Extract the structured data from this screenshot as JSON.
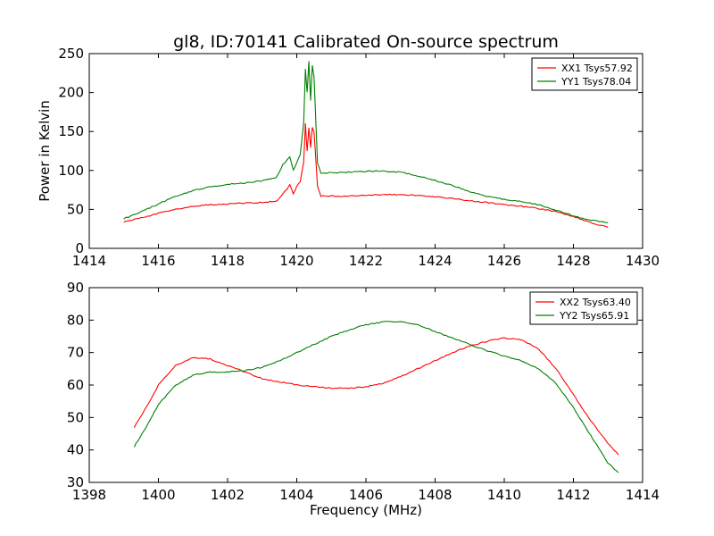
{
  "title": "gl8, ID:70141 Calibrated On-source spectrum",
  "ylabel_top": "Power in Kelvin",
  "xlabel_bottom": "Frequency (MHz)",
  "colors": {
    "XX": "#ff0000",
    "YY": "#008000",
    "axes": "#000000",
    "background": "#ffffff"
  },
  "chart_data": [
    {
      "type": "line",
      "xlim": [
        1414,
        1430
      ],
      "ylim": [
        0,
        250
      ],
      "xticks": [
        1414,
        1416,
        1418,
        1420,
        1422,
        1424,
        1426,
        1428,
        1430
      ],
      "yticks": [
        0,
        50,
        100,
        150,
        200,
        250
      ],
      "ylabel": "Power in Kelvin",
      "legend_position": "top-right",
      "series": [
        {
          "name": "XX1 Tsys57.92",
          "color": "#ff0000",
          "x": [
            1415.0,
            1415.5,
            1416.0,
            1416.5,
            1417.0,
            1417.5,
            1418.0,
            1418.5,
            1419.0,
            1419.4,
            1419.5,
            1419.6,
            1419.7,
            1419.8,
            1419.9,
            1420.0,
            1420.1,
            1420.2,
            1420.25,
            1420.3,
            1420.35,
            1420.4,
            1420.45,
            1420.5,
            1420.6,
            1420.7,
            1421.0,
            1421.5,
            1422.0,
            1422.5,
            1423.0,
            1423.5,
            1424.0,
            1424.5,
            1425.0,
            1425.5,
            1426.0,
            1426.5,
            1427.0,
            1427.5,
            1428.0,
            1428.5,
            1429.0
          ],
          "y": [
            34,
            39,
            45,
            50,
            54,
            56,
            57,
            58,
            59,
            61,
            64,
            70,
            75,
            82,
            70,
            80,
            85,
            110,
            160,
            125,
            155,
            130,
            155,
            150,
            80,
            67,
            67,
            67,
            68,
            69,
            69,
            68,
            66,
            64,
            61,
            59,
            56,
            54,
            51,
            47,
            41,
            33,
            27
          ]
        },
        {
          "name": "YY1 Tsys78.04",
          "color": "#008000",
          "x": [
            1415.0,
            1415.5,
            1416.0,
            1416.5,
            1417.0,
            1417.5,
            1418.0,
            1418.5,
            1419.0,
            1419.4,
            1419.5,
            1419.6,
            1419.7,
            1419.8,
            1419.9,
            1420.0,
            1420.1,
            1420.2,
            1420.25,
            1420.3,
            1420.35,
            1420.4,
            1420.45,
            1420.5,
            1420.6,
            1420.7,
            1421.0,
            1421.5,
            1422.0,
            1422.5,
            1423.0,
            1423.5,
            1424.0,
            1424.5,
            1425.0,
            1425.5,
            1426.0,
            1426.5,
            1427.0,
            1427.5,
            1428.0,
            1428.5,
            1429.0
          ],
          "y": [
            38,
            47,
            57,
            67,
            74,
            79,
            82,
            84,
            87,
            91,
            98,
            108,
            112,
            118,
            100,
            110,
            120,
            160,
            230,
            200,
            240,
            190,
            235,
            220,
            110,
            97,
            97,
            98,
            99,
            99,
            98,
            93,
            87,
            81,
            73,
            67,
            63,
            60,
            56,
            49,
            42,
            36,
            33
          ]
        }
      ]
    },
    {
      "type": "line",
      "xlim": [
        1398,
        1414
      ],
      "ylim": [
        30,
        90
      ],
      "xticks": [
        1398,
        1400,
        1402,
        1404,
        1406,
        1408,
        1410,
        1412,
        1414
      ],
      "yticks": [
        30,
        40,
        50,
        60,
        70,
        80,
        90
      ],
      "xlabel": "Frequency (MHz)",
      "legend_position": "top-right",
      "series": [
        {
          "name": "XX2 Tsys63.40",
          "color": "#ff0000",
          "x": [
            1399.3,
            1399.7,
            1400.0,
            1400.5,
            1401.0,
            1401.5,
            1402.0,
            1402.5,
            1403.0,
            1403.5,
            1404.0,
            1404.5,
            1405.0,
            1405.5,
            1406.0,
            1406.5,
            1407.0,
            1407.5,
            1408.0,
            1408.5,
            1409.0,
            1409.5,
            1410.0,
            1410.5,
            1411.0,
            1411.5,
            1412.0,
            1412.5,
            1413.0,
            1413.3
          ],
          "y": [
            47,
            54,
            60,
            66,
            68.5,
            68,
            66,
            64,
            62,
            61,
            60,
            59.5,
            59,
            59,
            59.5,
            60.5,
            62.5,
            65,
            67.5,
            70,
            72,
            73.5,
            74.5,
            74,
            71,
            65,
            57,
            49,
            42,
            38.5
          ]
        },
        {
          "name": "YY2 Tsys65.91",
          "color": "#008000",
          "x": [
            1399.3,
            1399.7,
            1400.0,
            1400.5,
            1401.0,
            1401.5,
            1402.0,
            1402.5,
            1403.0,
            1403.5,
            1404.0,
            1404.5,
            1405.0,
            1405.5,
            1406.0,
            1406.5,
            1407.0,
            1407.5,
            1408.0,
            1408.5,
            1409.0,
            1409.5,
            1410.0,
            1410.5,
            1411.0,
            1411.5,
            1412.0,
            1412.5,
            1413.0,
            1413.3
          ],
          "y": [
            41,
            48,
            54,
            60,
            63,
            64,
            64,
            64.5,
            65.5,
            67.5,
            70,
            72.5,
            75,
            77,
            78.5,
            79.5,
            79.5,
            78.5,
            76.5,
            74.5,
            72.5,
            70.5,
            69,
            67.5,
            65,
            60.5,
            53,
            44.5,
            36,
            33
          ]
        }
      ]
    }
  ]
}
